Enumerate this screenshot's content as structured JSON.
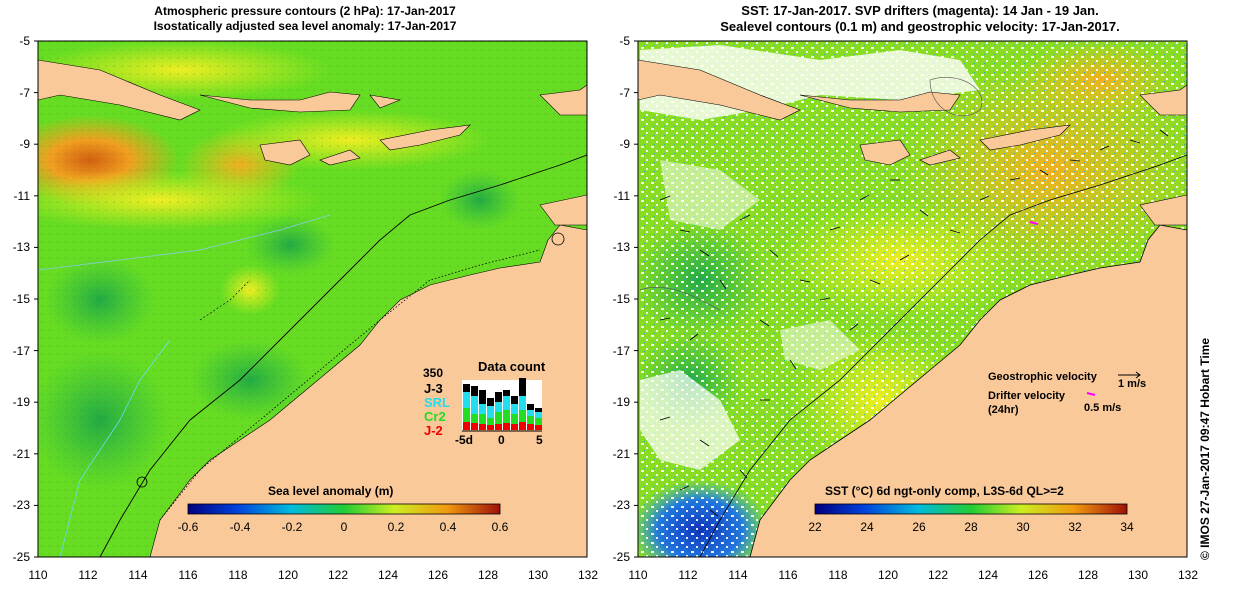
{
  "left_panel": {
    "title_line1": "Atmospheric pressure contours (2 hPa): 17-Jan-2017",
    "title_line2": "Isostatically adjusted sea level anomaly: 17-Jan-2017",
    "colorbar": {
      "title": "Sea level anomaly (m)",
      "ticks": [
        "-0.6",
        "-0.4",
        "-0.2",
        "0",
        "0.2",
        "0.4",
        "0.6"
      ],
      "range": [
        -0.6,
        0.6
      ]
    },
    "data_count": {
      "title": "Data count",
      "max_label": "350",
      "missions": [
        {
          "name": "J-3",
          "color": "#000000"
        },
        {
          "name": "SRL",
          "color": "#22ddee"
        },
        {
          "name": "Cr2",
          "color": "#22dd22"
        },
        {
          "name": "J-2",
          "color": "#ee0000"
        }
      ],
      "x_labels": [
        "-5d",
        "0",
        "5"
      ]
    }
  },
  "right_panel": {
    "title_line1": "SST: 17-Jan-2017. SVP drifters (magenta): 14 Jan - 19 Jan.",
    "title_line2": "Sealevel contours (0.1 m) and geostrophic velocity: 17-Jan-2017.",
    "colorbar": {
      "title": "SST (°C) 6d ngt-only comp, L3S-6d QL>=2",
      "ticks": [
        "22",
        "24",
        "26",
        "28",
        "30",
        "32",
        "34"
      ],
      "range": [
        22,
        34
      ]
    },
    "legend": {
      "geo_label": "Geostrophic velocity",
      "geo_scale": "1 m/s",
      "drifter_label": "Drifter velocity",
      "drifter_sub": "(24hr)",
      "drifter_scale": "0.5 m/s",
      "drifter_color": "#ff00ff"
    }
  },
  "axes": {
    "y_ticks": [
      "-5",
      "-7",
      "-9",
      "-11",
      "-13",
      "-15",
      "-17",
      "-19",
      "-21",
      "-23",
      "-25"
    ],
    "x_ticks": [
      "110",
      "112",
      "114",
      "116",
      "118",
      "120",
      "122",
      "124",
      "126",
      "128",
      "130",
      "132"
    ],
    "lat_range": [
      -25,
      -5
    ],
    "lon_range": [
      110,
      132
    ]
  },
  "side_text": "© IMOS 27-Jan-2017 09:47 Hobart Time",
  "colors": {
    "land": "#f9c99a",
    "sla_bg": "#66dd22",
    "sst_bg": "#88dd22"
  }
}
